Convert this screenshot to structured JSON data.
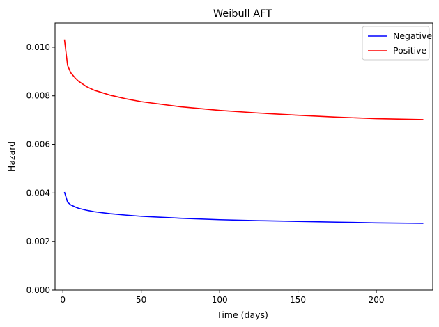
{
  "chart_data": {
    "type": "line",
    "title": "Weibull AFT",
    "xlabel": "Time (days)",
    "ylabel": "Hazard",
    "xlim": [
      -5,
      236
    ],
    "ylim": [
      0,
      0.011
    ],
    "xticks": [
      0,
      50,
      100,
      150,
      200
    ],
    "xtick_labels": [
      "0",
      "50",
      "100",
      "150",
      "200"
    ],
    "yticks": [
      0,
      0.002,
      0.004,
      0.006,
      0.008,
      0.01
    ],
    "ytick_labels": [
      "0.000",
      "0.002",
      "0.004",
      "0.006",
      "0.008",
      "0.010"
    ],
    "grid": false,
    "legend_position": "top-right",
    "series": [
      {
        "name": "Negative",
        "color": "#0000ff",
        "x": [
          1,
          3,
          5,
          8,
          10,
          15,
          20,
          30,
          40,
          50,
          75,
          100,
          125,
          150,
          175,
          200,
          230
        ],
        "y": [
          0.00404,
          0.00362,
          0.00351,
          0.00342,
          0.00337,
          0.00329,
          0.00323,
          0.00315,
          0.00309,
          0.00304,
          0.00296,
          0.0029,
          0.00286,
          0.00283,
          0.0028,
          0.00277,
          0.00275
        ]
      },
      {
        "name": "Positive",
        "color": "#ff0000",
        "x": [
          1,
          3,
          5,
          8,
          10,
          15,
          20,
          30,
          40,
          50,
          75,
          100,
          125,
          150,
          175,
          200,
          230
        ],
        "y": [
          0.01032,
          0.00925,
          0.00895,
          0.00872,
          0.0086,
          0.00838,
          0.00823,
          0.00803,
          0.00788,
          0.00776,
          0.00755,
          0.0074,
          0.00729,
          0.0072,
          0.00712,
          0.00706,
          0.00702
        ]
      }
    ]
  }
}
